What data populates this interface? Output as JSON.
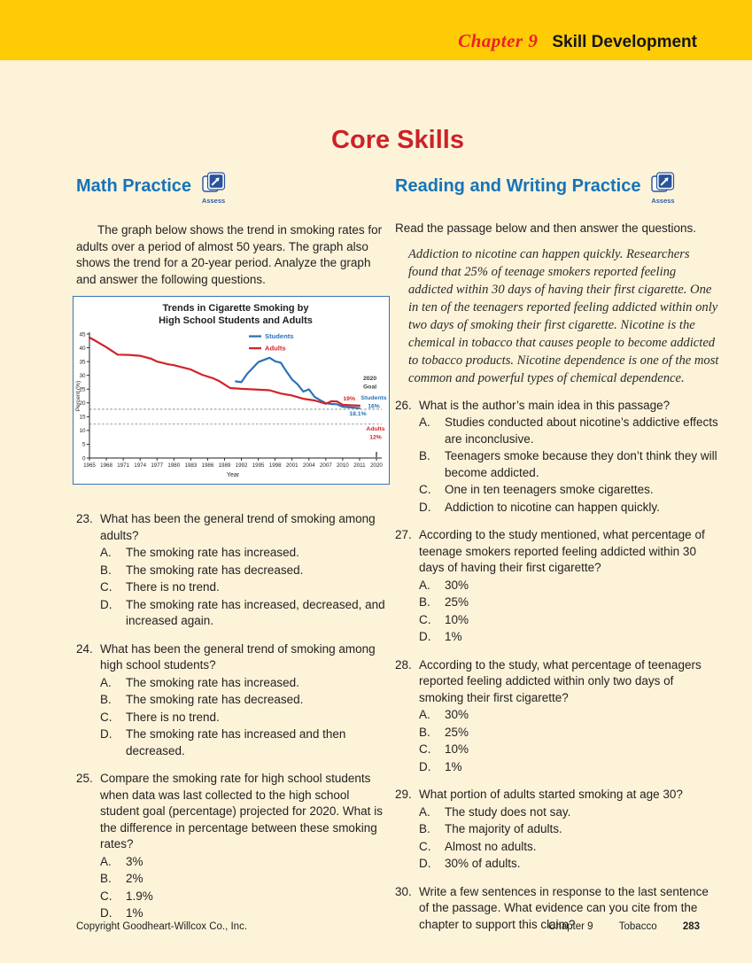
{
  "header": {
    "chapter_label": "Chapter 9",
    "title": "Skill Development"
  },
  "page_title": "Core Skills",
  "math_practice": {
    "heading": "Math Practice",
    "assess_label": "Assess",
    "intro": "The graph below shows the trend in smoking rates for adults over a period of almost 50 years. The graph also shows the trend for a 20-year period. Analyze the graph and answer the following questions.",
    "questions": [
      {
        "number": "23.",
        "text": "What has been the general trend of smoking among adults?",
        "options": [
          [
            "A.",
            "The smoking rate has increased."
          ],
          [
            "B.",
            "The smoking rate has decreased."
          ],
          [
            "C.",
            "There is no trend."
          ],
          [
            "D.",
            "The smoking rate has increased, decreased, and increased again."
          ]
        ]
      },
      {
        "number": "24.",
        "text": "What has been the general trend of smoking among high school students?",
        "options": [
          [
            "A.",
            "The smoking rate has increased."
          ],
          [
            "B.",
            "The smoking rate has decreased."
          ],
          [
            "C.",
            "There is no trend."
          ],
          [
            "D.",
            "The smoking rate has increased and then decreased."
          ]
        ]
      },
      {
        "number": "25.",
        "text": "Compare the smoking rate for high school students when data was last collected to the high school student goal (percentage) projected for 2020. What is the difference in percentage between these smoking rates?",
        "options": [
          [
            "A.",
            "3%"
          ],
          [
            "B.",
            "2%"
          ],
          [
            "C.",
            "1.9%"
          ],
          [
            "D.",
            "1%"
          ]
        ]
      }
    ]
  },
  "reading_practice": {
    "heading": "Reading and Writing Practice",
    "assess_label": "Assess",
    "intro": "Read the passage below and then answer the questions.",
    "passage": "Addiction to nicotine can happen quickly. Researchers found that 25% of teenage smokers reported feeling addicted within 30 days of having their first cigarette. One in ten of the teenagers reported feeling addicted within only two days of smoking their first cigarette. Nicotine is the chemical in tobacco that causes people to become addicted to tobacco products. Nicotine dependence is one of the most common and powerful types of chemical dependence.",
    "questions": [
      {
        "number": "26.",
        "text": "What is the author’s main idea in this passage?",
        "options": [
          [
            "A.",
            "Studies conducted about nicotine’s addictive effects are inconclusive."
          ],
          [
            "B.",
            "Teenagers smoke because they don’t think they will become addicted."
          ],
          [
            "C.",
            "One in ten teenagers smoke cigarettes."
          ],
          [
            "D.",
            "Addiction to nicotine can happen quickly."
          ]
        ]
      },
      {
        "number": "27.",
        "text": "According to the study mentioned, what percentage of teenage smokers reported feeling addicted within 30 days of having their first cigarette?",
        "options": [
          [
            "A.",
            "30%"
          ],
          [
            "B.",
            "25%"
          ],
          [
            "C.",
            "10%"
          ],
          [
            "D.",
            "1%"
          ]
        ]
      },
      {
        "number": "28.",
        "text": "According to the study, what percentage of teenagers reported feeling addicted within only two days of smoking their first cigarette?",
        "options": [
          [
            "A.",
            "30%"
          ],
          [
            "B.",
            "25%"
          ],
          [
            "C.",
            "10%"
          ],
          [
            "D.",
            "1%"
          ]
        ]
      },
      {
        "number": "29.",
        "text": "What portion of adults started smoking at age 30?",
        "options": [
          [
            "A.",
            "The study does not say."
          ],
          [
            "B.",
            "The majority of adults."
          ],
          [
            "C.",
            "Almost no adults."
          ],
          [
            "D.",
            "30% of adults."
          ]
        ]
      },
      {
        "number": "30.",
        "text": "Write a few sentences in response to the last sentence of the passage. What evidence can you cite from the chapter to support this claim?",
        "options": []
      }
    ]
  },
  "chart_data": {
    "type": "line",
    "title_lines": [
      "Trends in Cigarette Smoking by",
      "High School Students and Adults"
    ],
    "xlabel": "Year",
    "ylabel": "Percent (%)",
    "ylim": [
      0,
      45
    ],
    "ytick_step": 5,
    "xtick_labels": [
      "1965",
      "1968",
      "1971",
      "1974",
      "1977",
      "1980",
      "1983",
      "1986",
      "1989",
      "1992",
      "1995",
      "1998",
      "2001",
      "2004",
      "2007",
      "2010",
      "2011",
      "2020"
    ],
    "legend": [
      {
        "label": "Students",
        "color": "#2b72b8"
      },
      {
        "label": "Adults",
        "color": "#d2232a"
      }
    ],
    "series": [
      {
        "name": "Students",
        "color": "#2b72b8",
        "points": [
          [
            1991,
            27.8
          ],
          [
            1992,
            27.5
          ],
          [
            1993,
            30.5
          ],
          [
            1995,
            34.8
          ],
          [
            1997,
            36.4
          ],
          [
            1998,
            35.1
          ],
          [
            1999,
            34.6
          ],
          [
            2000,
            31.4
          ],
          [
            2001,
            28.5
          ],
          [
            2002,
            26.7
          ],
          [
            2003,
            24.1
          ],
          [
            2004,
            24.9
          ],
          [
            2005,
            22.2
          ],
          [
            2006,
            21.0
          ],
          [
            2007,
            19.9
          ],
          [
            2008,
            19.6
          ],
          [
            2009,
            19.5
          ],
          [
            2010,
            18.6
          ],
          [
            2011,
            18.1
          ]
        ]
      },
      {
        "name": "Adults",
        "color": "#d2232a",
        "points": [
          [
            1965,
            43.7
          ],
          [
            1966,
            42.6
          ],
          [
            1968,
            40.2
          ],
          [
            1970,
            37.5
          ],
          [
            1972,
            37.4
          ],
          [
            1974,
            37.1
          ],
          [
            1976,
            36.0
          ],
          [
            1977,
            35.0
          ],
          [
            1979,
            34.0
          ],
          [
            1980,
            33.7
          ],
          [
            1983,
            32.1
          ],
          [
            1985,
            30.2
          ],
          [
            1987,
            28.9
          ],
          [
            1988,
            28.0
          ],
          [
            1990,
            25.4
          ],
          [
            1992,
            25.1
          ],
          [
            1994,
            24.9
          ],
          [
            1997,
            24.6
          ],
          [
            1999,
            23.4
          ],
          [
            2001,
            22.7
          ],
          [
            2003,
            21.5
          ],
          [
            2005,
            20.9
          ],
          [
            2007,
            19.7
          ],
          [
            2008,
            20.6
          ],
          [
            2009,
            20.5
          ],
          [
            2010,
            19.3
          ],
          [
            2011,
            19.0
          ]
        ]
      }
    ],
    "goals_2020": {
      "students": "16%",
      "adults": "12%"
    },
    "latest_values": {
      "students": "18.1%",
      "adults": "19%"
    },
    "dotted_lines": [
      17.7,
      12.3
    ],
    "annotations": [
      {
        "id": "goal-2020",
        "lines": [
          "2020",
          "Goal"
        ],
        "x": 327,
        "y": 94,
        "color": "#3b3b3b",
        "anchor": "start"
      },
      {
        "id": "adults-latest",
        "lines": [
          "19%"
        ],
        "x": 318,
        "y": 117,
        "color": "#d2232a",
        "anchor": "end"
      },
      {
        "id": "students-goal",
        "lines": [
          "Students",
          "16%"
        ],
        "x": 339,
        "y": 116,
        "color": "#2b72b8",
        "anchor": "middle"
      },
      {
        "id": "students-latest",
        "lines": [
          "18.1%"
        ],
        "x": 321,
        "y": 134,
        "color": "#2b72b8",
        "anchor": "middle"
      },
      {
        "id": "adults-goal",
        "lines": [
          "Adults",
          "12%"
        ],
        "x": 341,
        "y": 151,
        "color": "#d2232a",
        "anchor": "middle"
      }
    ],
    "grid": false,
    "legend_position": "top-center-inside"
  },
  "footer": {
    "copyright": "Copyright Goodheart-Willcox Co., Inc.",
    "chapter": "Chapter 9",
    "topic": "Tobacco",
    "page": "283"
  },
  "colors": {
    "band_yellow": "#ffcb05",
    "page_cream": "#fcf3d9",
    "heading_blue": "#1673b9",
    "title_red": "#ce2127",
    "chart_border": "#3575b9",
    "students_blue": "#2b72b8",
    "adults_red": "#d2232a"
  }
}
